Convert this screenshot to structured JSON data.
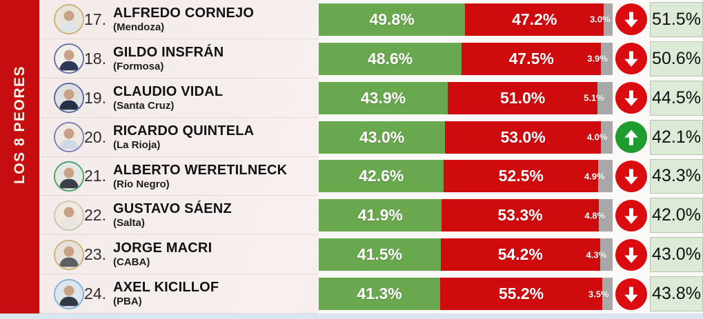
{
  "section": {
    "title": "LOS 8 PEORES"
  },
  "colors": {
    "sidebar": "#c60d10",
    "approve": "#6aa84f",
    "disapprove": "#d00b0e",
    "undecided": "#a8a8a8",
    "trend_up": "#1f9c2e",
    "trend_down": "#da0c10",
    "score_bg": "#dcead7",
    "score_border": "#b4c4ab"
  },
  "rows": [
    {
      "rank": "17.",
      "name": "ALFREDO CORNEJO",
      "province": "(Mendoza)",
      "approve_label": "49.8%",
      "disapprove_label": "47.2%",
      "undecided_label": "3.0%",
      "trend": "down",
      "score_label": "51.5%",
      "avatar": {
        "ring": "#c9b273",
        "bg": "#e9e4da",
        "shirt": "#dfe3ea"
      }
    },
    {
      "rank": "18.",
      "name": "GILDO INSFRÁN",
      "province": "(Formosa)",
      "approve_label": "48.6%",
      "disapprove_label": "47.5%",
      "undecided_label": "3.9%",
      "trend": "down",
      "score_label": "50.6%",
      "avatar": {
        "ring": "#6673a8",
        "bg": "#f1efec",
        "shirt": "#2e3a55"
      }
    },
    {
      "rank": "19.",
      "name": "CLAUDIO VIDAL",
      "province": "(Santa Cruz)",
      "approve_label": "43.9%",
      "disapprove_label": "51.0%",
      "undecided_label": "5.1%",
      "trend": "down",
      "score_label": "44.5%",
      "avatar": {
        "ring": "#5b6aa0",
        "bg": "#dfe0e2",
        "shirt": "#252f47"
      }
    },
    {
      "rank": "20.",
      "name": "RICARDO QUINTELA",
      "province": "(La Rioja)",
      "approve_label": "43.0%",
      "disapprove_label": "53.0%",
      "undecided_label": "4.0%",
      "trend": "up",
      "score_label": "42.1%",
      "avatar": {
        "ring": "#8379b8",
        "bg": "#efe9e2",
        "shirt": "#cfd8e4"
      }
    },
    {
      "rank": "21.",
      "name": "ALBERTO WERETILNECK",
      "province": "(Río Negro)",
      "approve_label": "42.6%",
      "disapprove_label": "52.5%",
      "undecided_label": "4.9%",
      "trend": "down",
      "score_label": "43.3%",
      "avatar": {
        "ring": "#49a06b",
        "bg": "#e4e8e2",
        "shirt": "#3a3f4a"
      }
    },
    {
      "rank": "22.",
      "name": "GUSTAVO SÁENZ",
      "province": "(Salta)",
      "approve_label": "41.9%",
      "disapprove_label": "53.3%",
      "undecided_label": "4.8%",
      "trend": "down",
      "score_label": "42.0%",
      "avatar": {
        "ring": "#c9c4b2",
        "bg": "#efe9e0",
        "shirt": "#e8e6df"
      }
    },
    {
      "rank": "23.",
      "name": "JORGE MACRI",
      "province": "(CABA)",
      "approve_label": "41.5%",
      "disapprove_label": "54.2%",
      "undecided_label": "4.3%",
      "trend": "down",
      "score_label": "43.0%",
      "avatar": {
        "ring": "#c9b273",
        "bg": "#e8e3da",
        "shirt": "#5a5f66"
      }
    },
    {
      "rank": "24.",
      "name": "AXEL KICILLOF",
      "province": "(PBA)",
      "approve_label": "41.3%",
      "disapprove_label": "55.2%",
      "undecided_label": "3.5%",
      "trend": "down",
      "score_label": "43.8%",
      "avatar": {
        "ring": "#7fb0d6",
        "bg": "#dde6ec",
        "shirt": "#333a46"
      }
    }
  ],
  "chart_data": {
    "type": "bar",
    "orientation": "horizontal-stacked",
    "title": "LOS 8 PEORES",
    "categories": [
      "ALFREDO CORNEJO (Mendoza)",
      "GILDO INSFRÁN (Formosa)",
      "CLAUDIO VIDAL (Santa Cruz)",
      "RICARDO QUINTELA (La Rioja)",
      "ALBERTO WERETILNECK (Río Negro)",
      "GUSTAVO SÁENZ (Salta)",
      "JORGE MACRI (CABA)",
      "AXEL KICILLOF (PBA)"
    ],
    "ranks": [
      17,
      18,
      19,
      20,
      21,
      22,
      23,
      24
    ],
    "series": [
      {
        "name": "aprobación (verde)",
        "color": "#6aa84f",
        "values": [
          49.8,
          48.6,
          43.9,
          43.0,
          42.6,
          41.9,
          41.5,
          41.3
        ]
      },
      {
        "name": "desaprobación (rojo)",
        "color": "#d00b0e",
        "values": [
          47.2,
          47.5,
          51.0,
          53.0,
          52.5,
          53.3,
          54.2,
          55.2
        ]
      },
      {
        "name": "ns/nc (gris)",
        "color": "#a8a8a8",
        "values": [
          3.0,
          3.9,
          5.1,
          4.0,
          4.9,
          4.8,
          4.3,
          3.5
        ]
      }
    ],
    "trend": [
      "down",
      "down",
      "down",
      "up",
      "down",
      "down",
      "down",
      "down"
    ],
    "right_column_values": [
      51.5,
      50.6,
      44.5,
      42.1,
      43.3,
      42.0,
      43.0,
      43.8
    ],
    "xlim": [
      0,
      100
    ],
    "grid": false,
    "legend": false
  }
}
